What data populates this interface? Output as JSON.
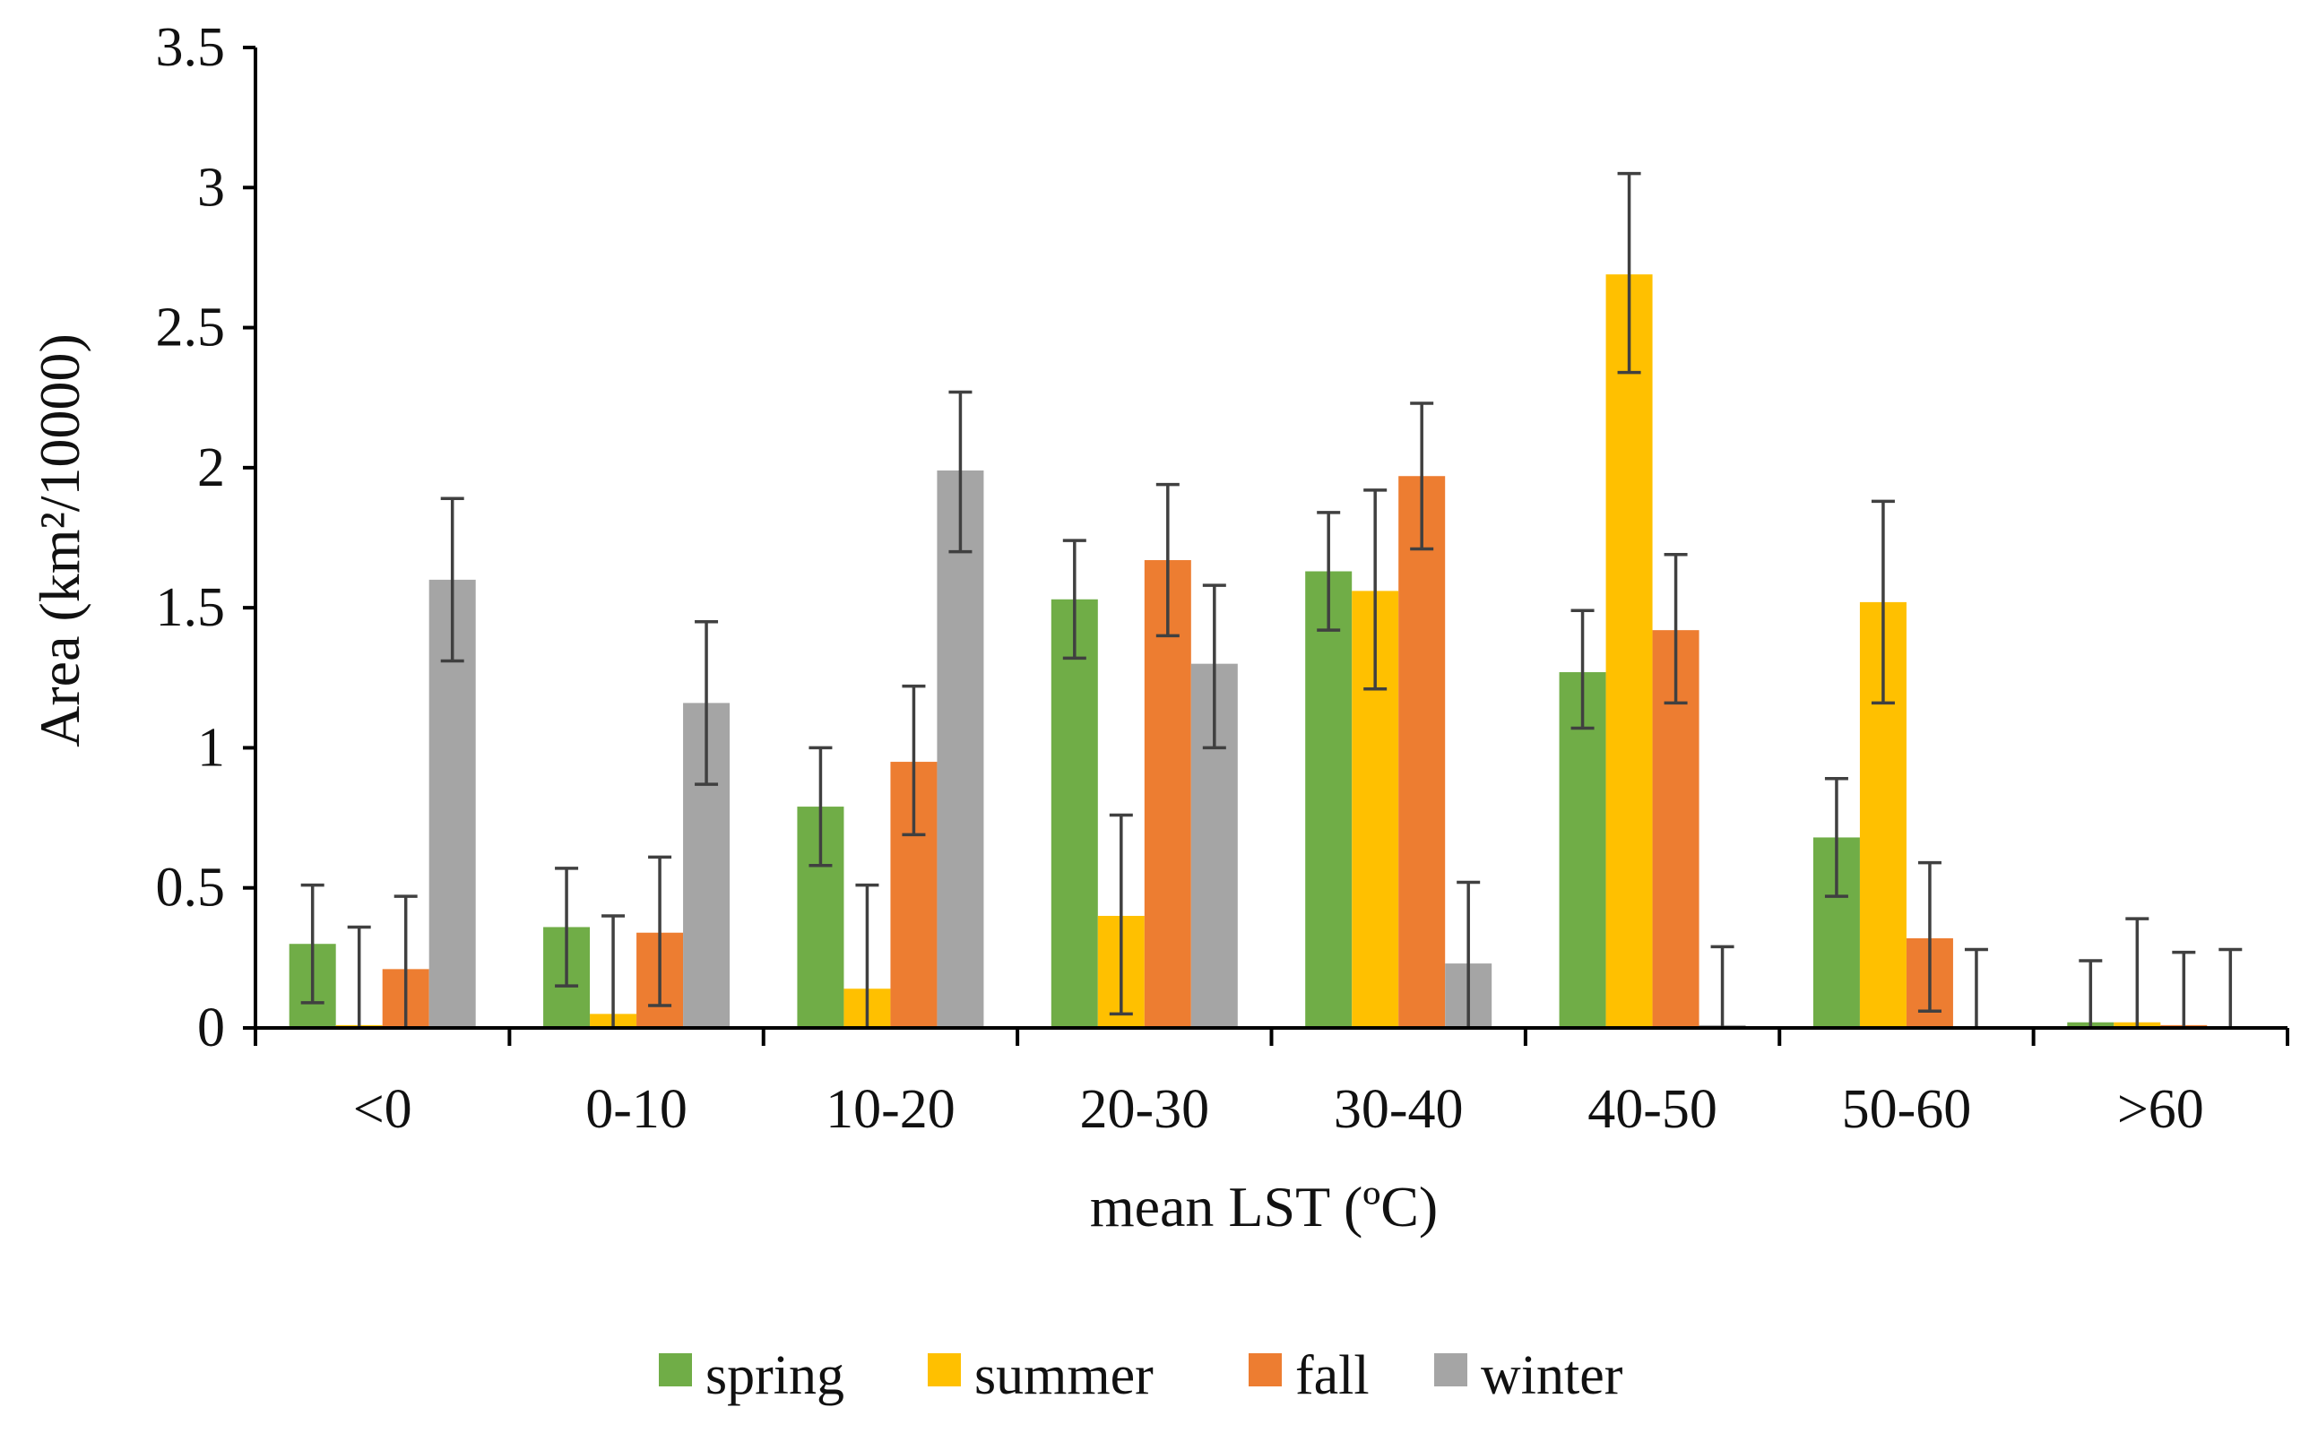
{
  "chart_data": {
    "type": "bar",
    "title": "",
    "xlabel": "mean LST (ºC)",
    "ylabel": "Area (km²/10000)",
    "ylim": [
      0,
      3.5
    ],
    "yticks": [
      "0",
      "0.5",
      "1",
      "1.5",
      "2",
      "2.5",
      "3",
      "3.5"
    ],
    "ytick_values": [
      0,
      0.5,
      1,
      1.5,
      2,
      2.5,
      3,
      3.5
    ],
    "categories": [
      "<0",
      "0-10",
      "10-20",
      "20-30",
      "30-40",
      "40-50",
      "50-60",
      ">60"
    ],
    "grid": false,
    "legend_position": "bottom",
    "series": [
      {
        "name": "spring",
        "color": "#70AD47",
        "values": [
          0.3,
          0.36,
          0.79,
          1.53,
          1.63,
          1.27,
          0.68,
          0.02
        ],
        "err_low": [
          0.09,
          0.15,
          0.58,
          1.32,
          1.42,
          1.07,
          0.47,
          0.0
        ],
        "err_high": [
          0.51,
          0.57,
          1.0,
          1.74,
          1.84,
          1.49,
          0.89,
          0.24
        ]
      },
      {
        "name": "summer",
        "color": "#FFC000",
        "values": [
          0.01,
          0.05,
          0.14,
          0.4,
          1.56,
          2.69,
          1.52,
          0.02
        ],
        "err_low": [
          0.0,
          0.0,
          0.0,
          0.05,
          1.21,
          2.34,
          1.16,
          0.0
        ],
        "err_high": [
          0.36,
          0.4,
          0.51,
          0.76,
          1.92,
          3.05,
          1.88,
          0.39
        ]
      },
      {
        "name": "fall",
        "color": "#ED7D31",
        "values": [
          0.21,
          0.34,
          0.95,
          1.67,
          1.97,
          1.42,
          0.32,
          0.01
        ],
        "err_low": [
          0.0,
          0.08,
          0.69,
          1.4,
          1.71,
          1.16,
          0.06,
          0.0
        ],
        "err_high": [
          0.47,
          0.61,
          1.22,
          1.94,
          2.23,
          1.69,
          0.59,
          0.27
        ]
      },
      {
        "name": "winter",
        "color": "#A5A5A5",
        "values": [
          1.6,
          1.16,
          1.99,
          1.3,
          0.23,
          0.01,
          0.0,
          0.0
        ],
        "err_low": [
          1.31,
          0.87,
          1.7,
          1.0,
          0.0,
          0.0,
          0.0,
          0.0
        ],
        "err_high": [
          1.89,
          1.45,
          2.27,
          1.58,
          0.52,
          0.29,
          0.28,
          0.28
        ]
      }
    ]
  }
}
